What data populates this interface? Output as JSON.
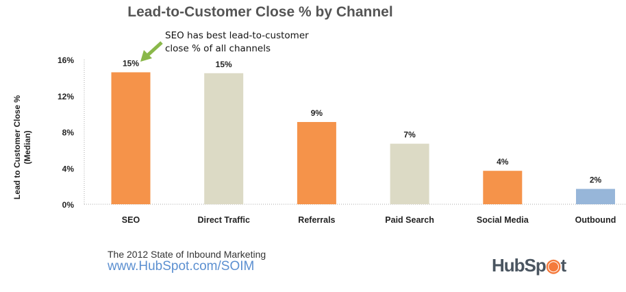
{
  "chart_data": {
    "type": "bar",
    "title": "Lead-to-Customer Close % by Channel",
    "ylabel": "Lead to Customer Close % (Median)",
    "ylabel_lines": [
      "Lead to Customer Close %",
      "(Median)"
    ],
    "xlabel": "",
    "categories": [
      "SEO",
      "Direct Traffic",
      "Referrals",
      "Paid Search",
      "Social Media",
      "Outbound"
    ],
    "values": [
      14.6,
      14.5,
      9.1,
      6.7,
      3.7,
      1.7
    ],
    "data_labels": [
      "15%",
      "15%",
      "9%",
      "7%",
      "4%",
      "2%"
    ],
    "colors": [
      "#f5934a",
      "#dcdac5",
      "#f5934a",
      "#dcdac5",
      "#f5934a",
      "#97b6d9"
    ],
    "ylim": [
      0,
      16
    ],
    "yticks": [
      0,
      4,
      8,
      12,
      16
    ],
    "ytick_labels": [
      "0%",
      "4%",
      "8%",
      "12%",
      "16%"
    ],
    "grid": false,
    "annotation": {
      "lines": [
        "SEO has best lead-to-customer",
        "close % of all channels"
      ],
      "target": "SEO",
      "arrow_color": "#8ab84a"
    }
  },
  "footer": {
    "line1": "The 2012 State of Inbound Marketing",
    "line2": "www.HubSpot.com/SOIM"
  },
  "logo": {
    "text": "HubSpot",
    "accent": "#f47a3c"
  }
}
